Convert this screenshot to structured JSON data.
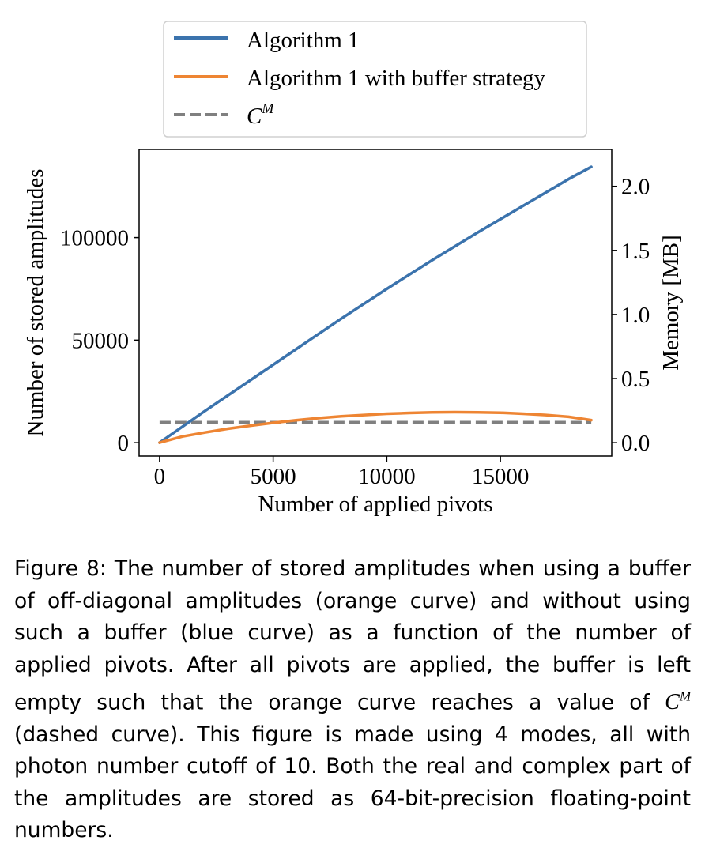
{
  "chart_data": {
    "type": "line",
    "xlabel": "Number of applied pivots",
    "ylabel": "Number of stored amplitudes",
    "y2label": "Memory [MB]",
    "xlim": [
      -900,
      19900
    ],
    "ylim": [
      -6500,
      143000
    ],
    "y2lim": [
      -0.104,
      2.288
    ],
    "xticks": [
      0,
      5000,
      10000,
      15000
    ],
    "yticks": [
      0,
      50000,
      100000
    ],
    "y2ticks": [
      0.0,
      0.5,
      1.0,
      1.5,
      2.0
    ],
    "xtick_labels": [
      "0",
      "5000",
      "10000",
      "15000"
    ],
    "ytick_labels": [
      "0",
      "50000",
      "100000"
    ],
    "y2tick_labels": [
      "0.0",
      "0.5",
      "1.0",
      "1.5",
      "2.0"
    ],
    "legend_position": "above the plot, centered",
    "grid": false,
    "series": [
      {
        "name": "Algorithm 1",
        "color": "#3b73ad",
        "style": "solid",
        "x": [
          0,
          2000,
          4000,
          6000,
          8000,
          10000,
          12000,
          14000,
          16000,
          18000,
          19000
        ],
        "y": [
          0,
          15500,
          30500,
          45500,
          60500,
          75000,
          89000,
          102500,
          115500,
          128500,
          134500
        ]
      },
      {
        "name": "Algorithm 1 with buffer strategy",
        "color": "#ee8533",
        "style": "solid",
        "x": [
          0,
          1000,
          2000,
          3000,
          4000,
          5000,
          6000,
          7000,
          8000,
          9000,
          10000,
          11000,
          12000,
          13000,
          14000,
          15000,
          16000,
          17000,
          18000,
          19000
        ],
        "y": [
          0,
          3000,
          5000,
          6800,
          8300,
          9700,
          10900,
          12000,
          12900,
          13500,
          14100,
          14500,
          14800,
          14900,
          14800,
          14600,
          14100,
          13500,
          12600,
          11000
        ]
      },
      {
        "name": "C",
        "name_sup": "M",
        "color": "#808080",
        "style": "dashed",
        "x": [
          0,
          19000
        ],
        "y": [
          10000,
          10000
        ]
      }
    ]
  },
  "caption": {
    "part1": "Figure 8:  The number of stored amplitudes when using a buffer of off-diagonal amplitudes (orange curve) and without using such a buffer (blue curve) as a function of the number of applied pivots.  After all pivots are applied, the buffer is left empty such that the orange curve reaches a value of ",
    "cm_base": "C",
    "cm_sup": "M",
    "part2": " (dashed curve).  This figure is made using 4 modes, all with photon number cutoff of 10.  Both the real and complex part of the amplitudes are stored as 64-bit-precision floating-point numbers."
  }
}
